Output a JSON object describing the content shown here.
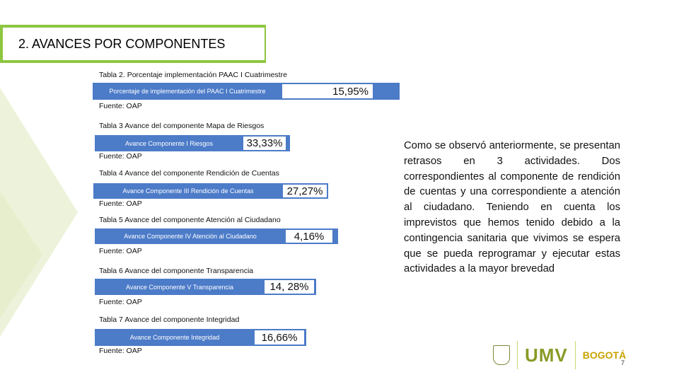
{
  "title": "2. AVANCES POR COMPONENTES",
  "tables": [
    {
      "caption": "Tabla 2. Porcentaje implementación PAAC I Cuatrimestre",
      "bar_label": "Porcentaje de implementación del PAAC I Cuatrimestre",
      "value": "15,95%",
      "source": "Fuente: OAP"
    },
    {
      "caption": "Tabla 3 Avance del componente Mapa de Riesgos",
      "bar_label": "Avance Componente I Riesgos",
      "value": "33,33%",
      "source": "Fuente: OAP"
    },
    {
      "caption": "Tabla 4 Avance del componente Rendición de Cuentas",
      "bar_label": "Avance Componente III Rendición de Cuentas",
      "value": "27,27%",
      "source": "Fuente: OAP"
    },
    {
      "caption": "Tabla 5 Avance del componente Atención al Ciudadano",
      "bar_label": "Avance Componente IV Atención al Ciudadano",
      "value": "4,16%",
      "source": "Fuente: OAP"
    },
    {
      "caption": "Tabla 6 Avance del componente Transparencia",
      "bar_label": "Avance Componente V Transparencia",
      "value": "14, 28%",
      "source": "Fuente: OAP"
    },
    {
      "caption": "Tabla 7 Avance del componente Integridad",
      "bar_label": "Avance Componente Integridad",
      "value": "16,66%",
      "source": "Fuente: OAP"
    }
  ],
  "paragraph": "Como se observó anteriormente, se presentan retrasos en 3 actividades. Dos correspondientes al componente de rendición de cuentas y una correspondiente a atención al ciudadano. Teniendo en cuenta los imprevistos que hemos tenido debido a la contingencia sanitaria que vivimos se espera que se pueda reprogramar y ejecutar estas actividades a la mayor brevedad",
  "logos": {
    "umv": "UMV",
    "bogota": "BOGOTÁ"
  },
  "page_number": "7",
  "colors": {
    "accent_green": "#8dc63f",
    "bar_blue": "#4c7bc8"
  }
}
